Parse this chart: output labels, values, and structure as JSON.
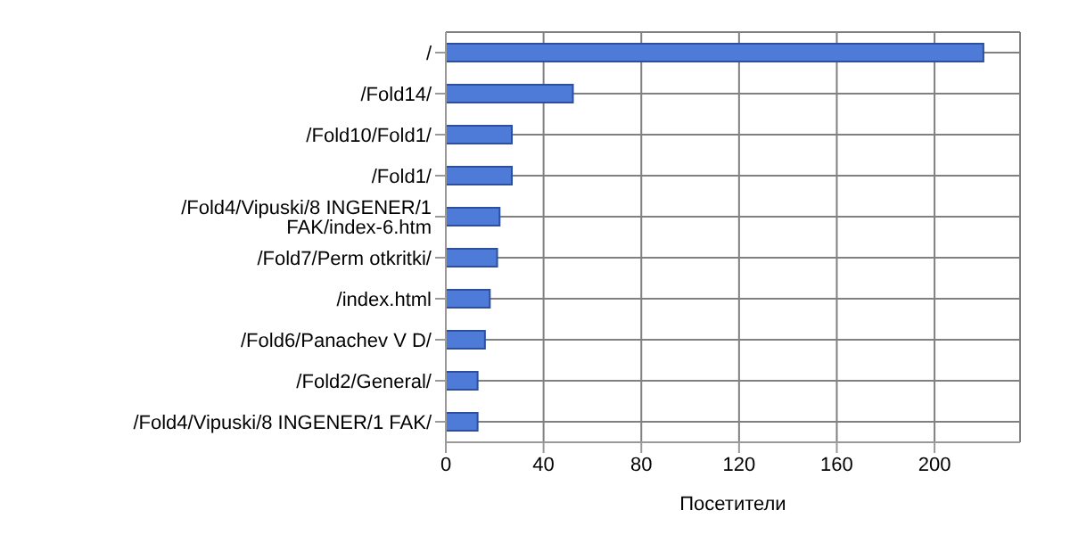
{
  "chart_data": {
    "type": "bar",
    "orientation": "horizontal",
    "xlabel": "Посетители",
    "categories": [
      "/",
      "/Fold14/",
      "/Fold10/Fold1/",
      "/Fold1/",
      "/Fold4/Vipuski/8 INGENER/1 FAK/index-6.htm",
      "/Fold7/Perm otkritki/",
      "/index.html",
      "/Fold6/Panachev V D/",
      "/Fold2/General/",
      "/Fold4/Vipuski/8 INGENER/1 FAK/"
    ],
    "values": [
      220,
      52,
      27,
      27,
      22,
      21,
      18,
      16,
      13,
      13
    ],
    "color": "#4f7bd8",
    "xlim": [
      0,
      235
    ],
    "xticks": [
      0,
      40,
      80,
      120,
      160,
      200
    ],
    "grid": true,
    "legend": false
  }
}
